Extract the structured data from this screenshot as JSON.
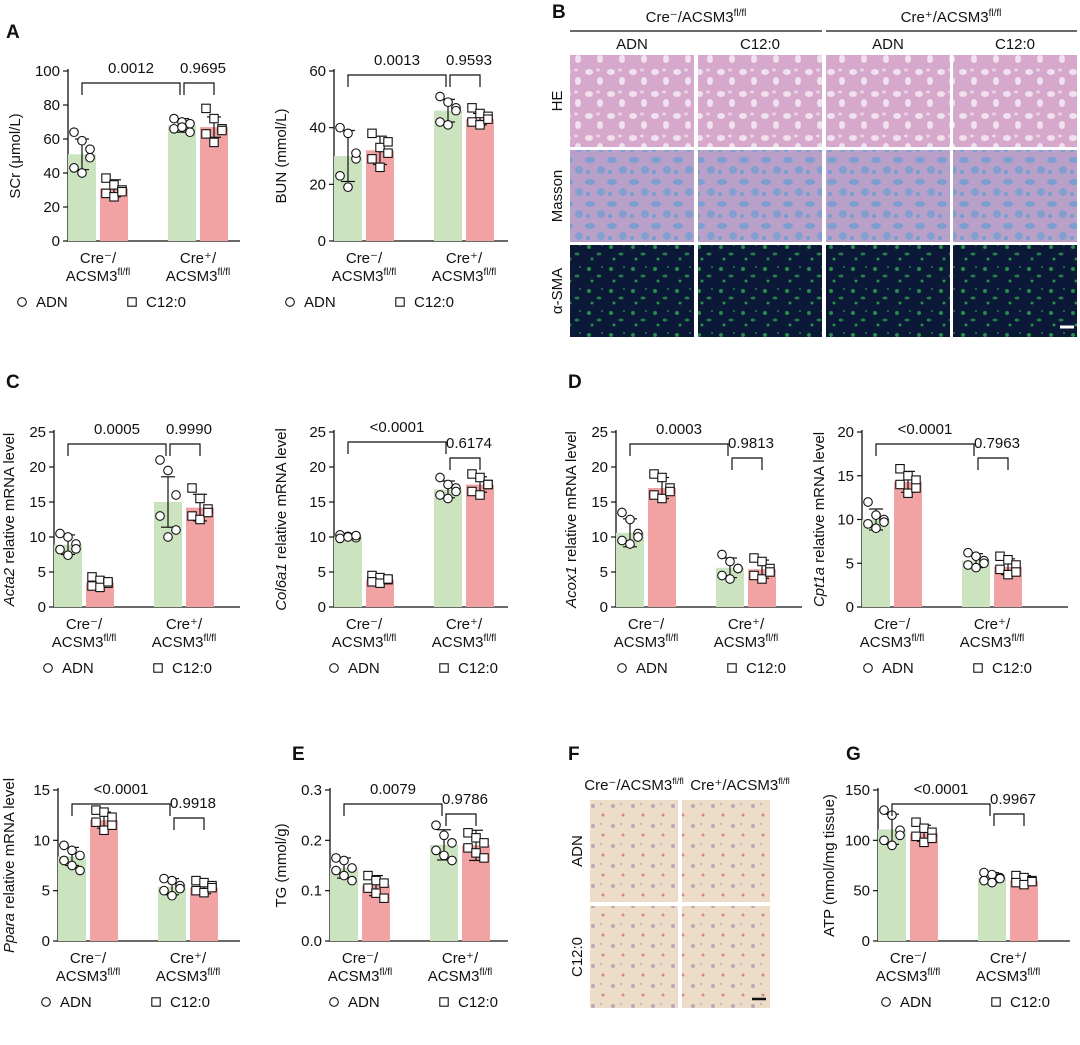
{
  "panels": {
    "A": "A",
    "B": "B",
    "C": "C",
    "D": "D",
    "E": "E",
    "F": "F",
    "G": "G"
  },
  "legend": {
    "adn": "ADN",
    "c12": "C12:0"
  },
  "groups": {
    "neg_line1": "Cre⁻/",
    "pos_line1": "Cre⁺/",
    "line2": "ACSM3",
    "sup": "fl/fl"
  },
  "colors": {
    "adn": "#cbe3bf",
    "c12": "#f2a2a2",
    "line": "#111111"
  },
  "histology_B": {
    "header_neg": "Cre⁻/ACSM3",
    "header_pos": "Cre⁺/ACSM3",
    "header_sup": "fl/fl",
    "columns": [
      "ADN",
      "C12:0",
      "ADN",
      "C12:0"
    ],
    "rows": [
      "HE",
      "Masson",
      "α-SMA"
    ]
  },
  "histology_F": {
    "header_neg": "Cre⁻/ACSM3",
    "header_pos": "Cre⁺/ACSM3",
    "header_sup": "fl/fl",
    "rows": [
      "ADN",
      "C12:0"
    ]
  },
  "chart_data": [
    {
      "id": "scr",
      "type": "bar",
      "ylabel": "SCr (μmol/L)",
      "ylim": [
        0,
        100
      ],
      "yticks": [
        0,
        20,
        40,
        60,
        80,
        100
      ],
      "series": [
        {
          "name": "ADN",
          "values": [
            51,
            68
          ],
          "sd": [
            9,
            4
          ],
          "points": [
            [
              64,
              59,
              54,
              43,
              40,
              49
            ],
            [
              72,
              70,
              69,
              66,
              67,
              64
            ]
          ]
        },
        {
          "name": "C12:0",
          "values": [
            31,
            67
          ],
          "sd": [
            5,
            6
          ],
          "points": [
            [
              37,
              33,
              30,
              28,
              26,
              29
            ],
            [
              78,
              72,
              66,
              63,
              58,
              65
            ]
          ]
        }
      ],
      "pvalues": [
        "0.0012",
        "0.9695"
      ]
    },
    {
      "id": "bun",
      "type": "bar",
      "ylabel": "BUN (mmol/L)",
      "ylim": [
        0,
        60
      ],
      "yticks": [
        0,
        20,
        40,
        60
      ],
      "series": [
        {
          "name": "ADN",
          "values": [
            30,
            46
          ],
          "sd": [
            9,
            4
          ],
          "points": [
            [
              40,
              38,
              29,
              23,
              19,
              31
            ],
            [
              51,
              49,
              47,
              42,
              41,
              46
            ]
          ]
        },
        {
          "name": "C12:0",
          "values": [
            32,
            43
          ],
          "sd": [
            5,
            2
          ],
          "points": [
            [
              38,
              33,
              31,
              29,
              26,
              35
            ],
            [
              47,
              45,
              44,
              42,
              41,
              43
            ]
          ]
        }
      ],
      "pvalues": [
        "0.0013",
        "0.9593"
      ]
    },
    {
      "id": "acta2",
      "type": "bar",
      "ylabel": "Acta2 relative mRNA level",
      "ylabel_italic": "Acta2",
      "ylabel_rest": " relative mRNA level",
      "ylim": [
        0,
        25
      ],
      "yticks": [
        0,
        5,
        10,
        15,
        20,
        25
      ],
      "series": [
        {
          "name": "ADN",
          "values": [
            8.9,
            15.0
          ],
          "sd": [
            1.4,
            3.6
          ],
          "points": [
            [
              10.5,
              10.0,
              9.0,
              8.2,
              7.4,
              8.3
            ],
            [
              21,
              19.5,
              16,
              13,
              10,
              11
            ]
          ]
        },
        {
          "name": "C12:0",
          "values": [
            3.5,
            14.2
          ],
          "sd": [
            0.7,
            1.9
          ],
          "points": [
            [
              4.3,
              3.8,
              3.4,
              3.0,
              2.8,
              3.6
            ],
            [
              17,
              15.5,
              14,
              13,
              12.5,
              13.5
            ]
          ]
        }
      ],
      "pvalues": [
        "0.0005",
        "0.9990"
      ]
    },
    {
      "id": "col6a1",
      "type": "bar",
      "ylabel": "Col6a1 relative mRNA level",
      "ylabel_italic": "Col6a1",
      "ylabel_rest": " relative mRNA level",
      "ylim": [
        0,
        25
      ],
      "yticks": [
        0,
        5,
        10,
        15,
        20,
        25
      ],
      "series": [
        {
          "name": "ADN",
          "values": [
            10.0,
            16.8
          ],
          "sd": [
            0.3,
            1.2
          ],
          "points": [
            [
              10.3,
              10.1,
              9.9,
              9.8,
              10.0,
              10.2
            ],
            [
              18.5,
              17.5,
              17.0,
              16.0,
              15.5,
              16.5
            ]
          ]
        },
        {
          "name": "C12:0",
          "values": [
            3.9,
            17.5
          ],
          "sd": [
            0.6,
            1.1
          ],
          "points": [
            [
              4.5,
              4.2,
              3.9,
              3.6,
              3.4,
              4.0
            ],
            [
              19.0,
              18.5,
              17.5,
              16.5,
              16.0,
              17.5
            ]
          ]
        }
      ],
      "pvalues": [
        "<0.0001",
        "0.6174"
      ]
    },
    {
      "id": "acox1",
      "type": "bar",
      "ylabel": "Acox1 relative mRNA level",
      "ylabel_italic": "Acox1",
      "ylabel_rest": " relative mRNA level",
      "ylim": [
        0,
        25
      ],
      "yticks": [
        0,
        5,
        10,
        15,
        20,
        25
      ],
      "series": [
        {
          "name": "ADN",
          "values": [
            10.6,
            5.6
          ],
          "sd": [
            2.0,
            1.4
          ],
          "points": [
            [
              13.5,
              12.5,
              10.5,
              9.5,
              9.0,
              10.0
            ],
            [
              7.5,
              6.5,
              5.5,
              4.5,
              4.0,
              5.5
            ]
          ]
        },
        {
          "name": "C12:0",
          "values": [
            17.0,
            5.4
          ],
          "sd": [
            1.5,
            1.3
          ],
          "points": [
            [
              19.0,
              18.5,
              17.0,
              16.0,
              15.5,
              16.5
            ],
            [
              7.0,
              6.5,
              5.5,
              4.5,
              4.0,
              5.0
            ]
          ]
        }
      ],
      "pvalues": [
        "0.0003",
        "0.9813"
      ]
    },
    {
      "id": "cpt1a",
      "type": "bar",
      "ylabel": "Cpt1a relative mRNA level",
      "ylabel_italic": "Cpt1a",
      "ylabel_rest": " relative mRNA level",
      "ylim": [
        0,
        20
      ],
      "yticks": [
        0,
        5,
        10,
        15,
        20
      ],
      "series": [
        {
          "name": "ADN",
          "values": [
            10.0,
            5.3
          ],
          "sd": [
            1.2,
            0.8
          ],
          "points": [
            [
              12.0,
              10.5,
              10.0,
              9.5,
              9.0,
              9.7
            ],
            [
              6.2,
              5.8,
              5.3,
              4.8,
              4.5,
              5.0
            ]
          ]
        },
        {
          "name": "C12:0",
          "values": [
            14.3,
            4.6
          ],
          "sd": [
            1.2,
            0.9
          ],
          "points": [
            [
              15.8,
              15.0,
              14.5,
              14.0,
              13.0,
              13.6
            ],
            [
              5.8,
              5.4,
              4.8,
              4.3,
              3.7,
              4.0
            ]
          ]
        }
      ],
      "pvalues": [
        "<0.0001",
        "0.7963"
      ]
    },
    {
      "id": "ppara",
      "type": "bar",
      "ylabel": "Ppara relative mRNA level",
      "ylabel_italic": "Ppara",
      "ylabel_rest": " relative mRNA level",
      "ylim": [
        0,
        15
      ],
      "yticks": [
        0,
        5,
        10,
        15
      ],
      "series": [
        {
          "name": "ADN",
          "values": [
            8.4,
            5.4
          ],
          "sd": [
            0.9,
            0.8
          ],
          "points": [
            [
              9.5,
              9.0,
              8.5,
              8.0,
              7.5,
              7.0
            ],
            [
              6.2,
              6.0,
              5.5,
              5.0,
              4.5,
              5.2
            ]
          ]
        },
        {
          "name": "C12:0",
          "values": [
            12.0,
            5.3
          ],
          "sd": [
            0.8,
            0.6
          ],
          "points": [
            [
              13.0,
              12.8,
              12.3,
              11.8,
              11.0,
              11.5
            ],
            [
              6.0,
              5.8,
              5.5,
              5.0,
              4.8,
              5.3
            ]
          ]
        }
      ],
      "pvalues": [
        "<0.0001",
        "0.9918"
      ]
    },
    {
      "id": "tg",
      "type": "bar",
      "ylabel": "TG (mmol/g)",
      "ylim": [
        0,
        0.3
      ],
      "yticks": [
        "0.0",
        "0.1",
        "0.2",
        "0.3"
      ],
      "series": [
        {
          "name": "ADN",
          "values": [
            0.145,
            0.191
          ],
          "sd": [
            0.02,
            0.03
          ],
          "points": [
            [
              0.165,
              0.16,
              0.145,
              0.14,
              0.13,
              0.12
            ],
            [
              0.23,
              0.21,
              0.195,
              0.18,
              0.17,
              0.16
            ]
          ]
        },
        {
          "name": "C12:0",
          "values": [
            0.11,
            0.19
          ],
          "sd": [
            0.02,
            0.03
          ],
          "points": [
            [
              0.13,
              0.12,
              0.115,
              0.105,
              0.095,
              0.085
            ],
            [
              0.215,
              0.205,
              0.195,
              0.185,
              0.175,
              0.165
            ]
          ]
        }
      ],
      "pvalues": [
        "0.0079",
        "0.9786"
      ]
    },
    {
      "id": "atp",
      "type": "bar",
      "ylabel": "ATP (nmol/mg tissue)",
      "ylim": [
        0,
        150
      ],
      "yticks": [
        0,
        50,
        100,
        150
      ],
      "series": [
        {
          "name": "ADN",
          "values": [
            111,
            63
          ],
          "sd": [
            15,
            5
          ],
          "points": [
            [
              130,
              125,
              110,
              100,
              95,
              105
            ],
            [
              68,
              66,
              63,
              60,
              58,
              62
            ]
          ]
        },
        {
          "name": "C12:0",
          "values": [
            107,
            60
          ],
          "sd": [
            8,
            5
          ],
          "points": [
            [
              118,
              112,
              108,
              104,
              98,
              102
            ],
            [
              65,
              63,
              60,
              58,
              56,
              59
            ]
          ]
        }
      ],
      "pvalues": [
        "<0.0001",
        "0.9967"
      ]
    }
  ]
}
